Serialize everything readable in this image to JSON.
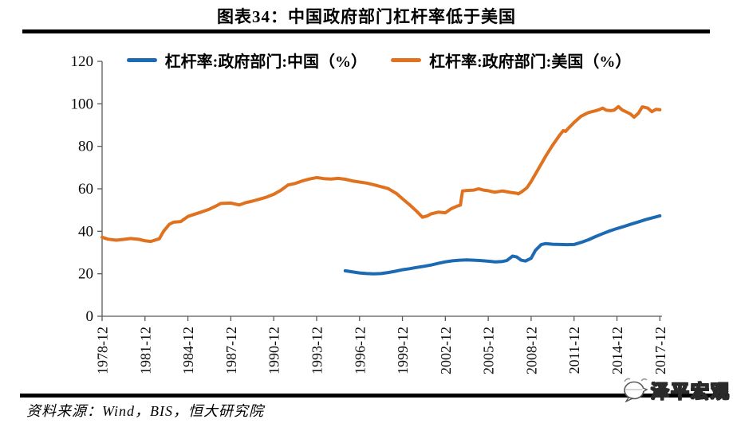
{
  "header": {
    "title": "图表34：中国政府部门杠杆率低于美国"
  },
  "footer": {
    "source": "资料来源：Wind，BIS，恒大研究院"
  },
  "watermark": {
    "text": "泽平宏观",
    "icon": "speech-bubble-icon"
  },
  "colors": {
    "china_line": "#1c6ab3",
    "us_line": "#e0711e",
    "axis": "#595959",
    "rule": "#000000"
  },
  "chart_data": {
    "type": "line",
    "title": "图表34：中国政府部门杠杆率低于美国",
    "xlabel": "",
    "ylabel": "",
    "grid": false,
    "legend_position": "top",
    "ylim": [
      0,
      120
    ],
    "xlim": [
      1978,
      2017.15
    ],
    "y_ticks": [
      0,
      20,
      40,
      60,
      80,
      100,
      120
    ],
    "x_ticks": [
      "1978-12",
      "1981-12",
      "1984-12",
      "1987-12",
      "1990-12",
      "1993-12",
      "1996-12",
      "1999-12",
      "2002-12",
      "2005-12",
      "2008-12",
      "2011-12",
      "2014-12",
      "2017-12"
    ],
    "x_note": "integer year N means December of year N; fractional = months after that December",
    "series": [
      {
        "name": "杠杆率:政府部门:中国（%）",
        "color": "#1c6ab3",
        "points": [
          [
            1995,
            21.4
          ],
          [
            1995.4,
            21.0
          ],
          [
            1996,
            20.4
          ],
          [
            1996.5,
            20.1
          ],
          [
            1997,
            20.0
          ],
          [
            1997.5,
            20.1
          ],
          [
            1998,
            20.6
          ],
          [
            1998.5,
            21.2
          ],
          [
            1999,
            21.9
          ],
          [
            1999.5,
            22.4
          ],
          [
            2000,
            23.0
          ],
          [
            2000.5,
            23.5
          ],
          [
            2001,
            24.1
          ],
          [
            2001.5,
            24.9
          ],
          [
            2002,
            25.6
          ],
          [
            2002.5,
            26.1
          ],
          [
            2003,
            26.4
          ],
          [
            2003.5,
            26.5
          ],
          [
            2004,
            26.4
          ],
          [
            2004.5,
            26.2
          ],
          [
            2005,
            25.9
          ],
          [
            2005.5,
            25.6
          ],
          [
            2006,
            25.8
          ],
          [
            2006.3,
            26.2
          ],
          [
            2006.7,
            28.3
          ],
          [
            2007,
            27.9
          ],
          [
            2007.3,
            26.4
          ],
          [
            2007.6,
            26.0
          ],
          [
            2008,
            27.3
          ],
          [
            2008.3,
            31.0
          ],
          [
            2008.7,
            33.7
          ],
          [
            2009,
            34.2
          ],
          [
            2009.5,
            33.9
          ],
          [
            2010,
            33.8
          ],
          [
            2010.5,
            33.7
          ],
          [
            2011,
            33.8
          ],
          [
            2011.5,
            34.8
          ],
          [
            2012,
            36.0
          ],
          [
            2012.5,
            37.5
          ],
          [
            2013,
            38.9
          ],
          [
            2013.5,
            40.2
          ],
          [
            2014,
            41.3
          ],
          [
            2014.5,
            42.3
          ],
          [
            2015,
            43.4
          ],
          [
            2015.5,
            44.4
          ],
          [
            2016,
            45.5
          ],
          [
            2016.5,
            46.4
          ],
          [
            2017,
            47.3
          ]
        ]
      },
      {
        "name": "杠杆率:政府部门:美国（%）",
        "color": "#e0711e",
        "points": [
          [
            1978,
            37.2
          ],
          [
            1978.4,
            36.3
          ],
          [
            1979,
            35.8
          ],
          [
            1979.5,
            36.2
          ],
          [
            1980,
            36.6
          ],
          [
            1980.6,
            36.2
          ],
          [
            1981,
            35.5
          ],
          [
            1981.4,
            35.2
          ],
          [
            1982,
            36.5
          ],
          [
            1982.3,
            40.0
          ],
          [
            1982.7,
            43.3
          ],
          [
            1983,
            44.3
          ],
          [
            1983.5,
            44.6
          ],
          [
            1984,
            47.0
          ],
          [
            1984.5,
            48.1
          ],
          [
            1985,
            49.2
          ],
          [
            1985.5,
            50.4
          ],
          [
            1986,
            52.0
          ],
          [
            1986.3,
            53.1
          ],
          [
            1987,
            53.3
          ],
          [
            1987.6,
            52.4
          ],
          [
            1988,
            53.4
          ],
          [
            1988.5,
            54.2
          ],
          [
            1989,
            55.1
          ],
          [
            1989.5,
            56.1
          ],
          [
            1990,
            57.4
          ],
          [
            1990.5,
            59.3
          ],
          [
            1991,
            61.8
          ],
          [
            1991.5,
            62.5
          ],
          [
            1992,
            63.7
          ],
          [
            1992.5,
            64.6
          ],
          [
            1993,
            65.3
          ],
          [
            1993.5,
            64.8
          ],
          [
            1994,
            64.6
          ],
          [
            1994.5,
            64.9
          ],
          [
            1995,
            64.5
          ],
          [
            1995.5,
            63.7
          ],
          [
            1996,
            63.2
          ],
          [
            1996.5,
            62.7
          ],
          [
            1997,
            61.9
          ],
          [
            1997.5,
            61.0
          ],
          [
            1998,
            60.1
          ],
          [
            1998.6,
            57.7
          ],
          [
            1999,
            55.3
          ],
          [
            1999.5,
            52.5
          ],
          [
            2000,
            49.4
          ],
          [
            2000.4,
            46.6
          ],
          [
            2000.75,
            47.3
          ],
          [
            2001,
            48.2
          ],
          [
            2001.5,
            49.0
          ],
          [
            2002,
            48.7
          ],
          [
            2002.4,
            50.6
          ],
          [
            2002.8,
            51.8
          ],
          [
            2003.05,
            52.3
          ],
          [
            2003.2,
            59.0
          ],
          [
            2003.5,
            59.2
          ],
          [
            2004,
            59.4
          ],
          [
            2004.33,
            60.0
          ],
          [
            2004.67,
            59.4
          ],
          [
            2005,
            59.1
          ],
          [
            2005.45,
            58.4
          ],
          [
            2006,
            59.0
          ],
          [
            2006.55,
            58.3
          ],
          [
            2007,
            57.9
          ],
          [
            2007.1,
            57.6
          ],
          [
            2007.4,
            58.9
          ],
          [
            2007.7,
            60.5
          ],
          [
            2008,
            63.4
          ],
          [
            2008.5,
            69.3
          ],
          [
            2009,
            75.2
          ],
          [
            2009.5,
            80.5
          ],
          [
            2010,
            85.3
          ],
          [
            2010.25,
            87.4
          ],
          [
            2010.4,
            87.0
          ],
          [
            2010.6,
            88.5
          ],
          [
            2011,
            91.2
          ],
          [
            2011.5,
            94.2
          ],
          [
            2012,
            95.9
          ],
          [
            2012.5,
            96.7
          ],
          [
            2012.8,
            97.4
          ],
          [
            2013,
            98.0
          ],
          [
            2013.25,
            97.0
          ],
          [
            2013.55,
            96.8
          ],
          [
            2013.8,
            97.0
          ],
          [
            2014.1,
            98.7
          ],
          [
            2014.37,
            97.1
          ],
          [
            2014.65,
            96.2
          ],
          [
            2014.93,
            95.3
          ],
          [
            2015.2,
            93.7
          ],
          [
            2015.5,
            95.6
          ],
          [
            2015.77,
            98.6
          ],
          [
            2016.16,
            98.0
          ],
          [
            2016.44,
            96.3
          ],
          [
            2016.72,
            97.4
          ],
          [
            2017,
            97.2
          ]
        ]
      }
    ]
  }
}
